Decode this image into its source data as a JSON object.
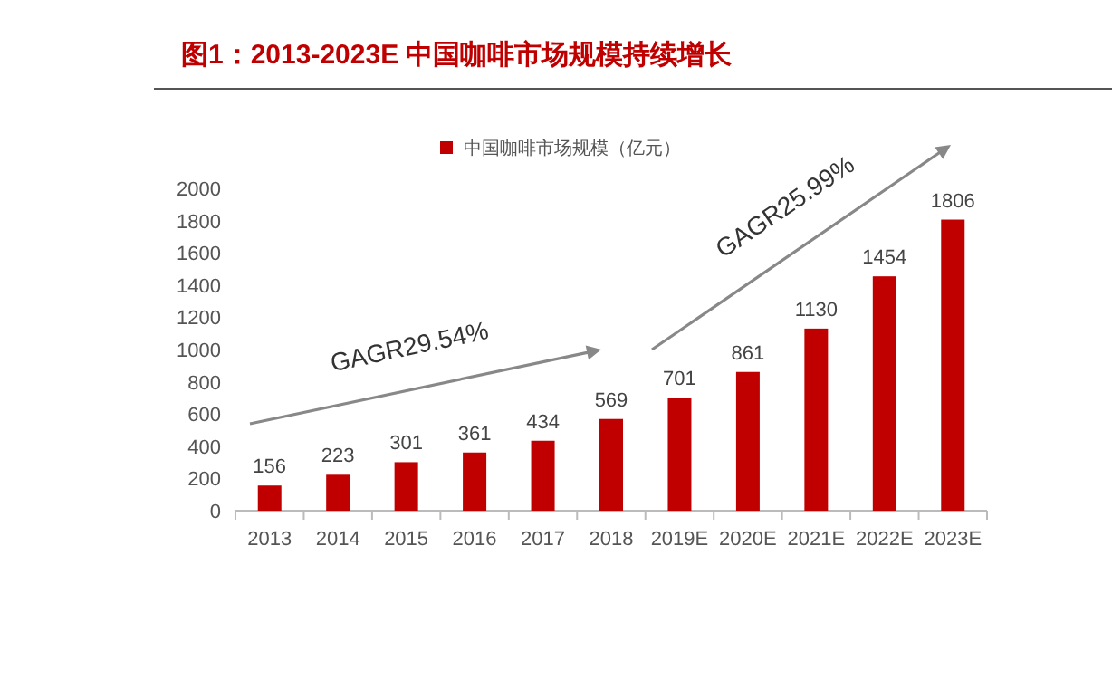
{
  "chart_data": {
    "type": "bar",
    "title": "图1：2013-2023E 中国咖啡市场规模持续增长",
    "categories": [
      "2013",
      "2014",
      "2015",
      "2016",
      "2017",
      "2018",
      "2019E",
      "2020E",
      "2021E",
      "2022E",
      "2023E"
    ],
    "series": [
      {
        "name": "中国咖啡市场规模（亿元）",
        "color": "#c00000",
        "values": [
          156,
          223,
          301,
          361,
          434,
          569,
          701,
          861,
          1130,
          1454,
          1806
        ]
      }
    ],
    "ylim": [
      0,
      2000
    ],
    "yticks": [
      0,
      200,
      400,
      600,
      800,
      1000,
      1200,
      1400,
      1600,
      1800,
      2000
    ],
    "data_labels": true,
    "legend": "top",
    "grid": false,
    "annotations": [
      "GAGR29.54%",
      "GAGR25.99%"
    ]
  }
}
